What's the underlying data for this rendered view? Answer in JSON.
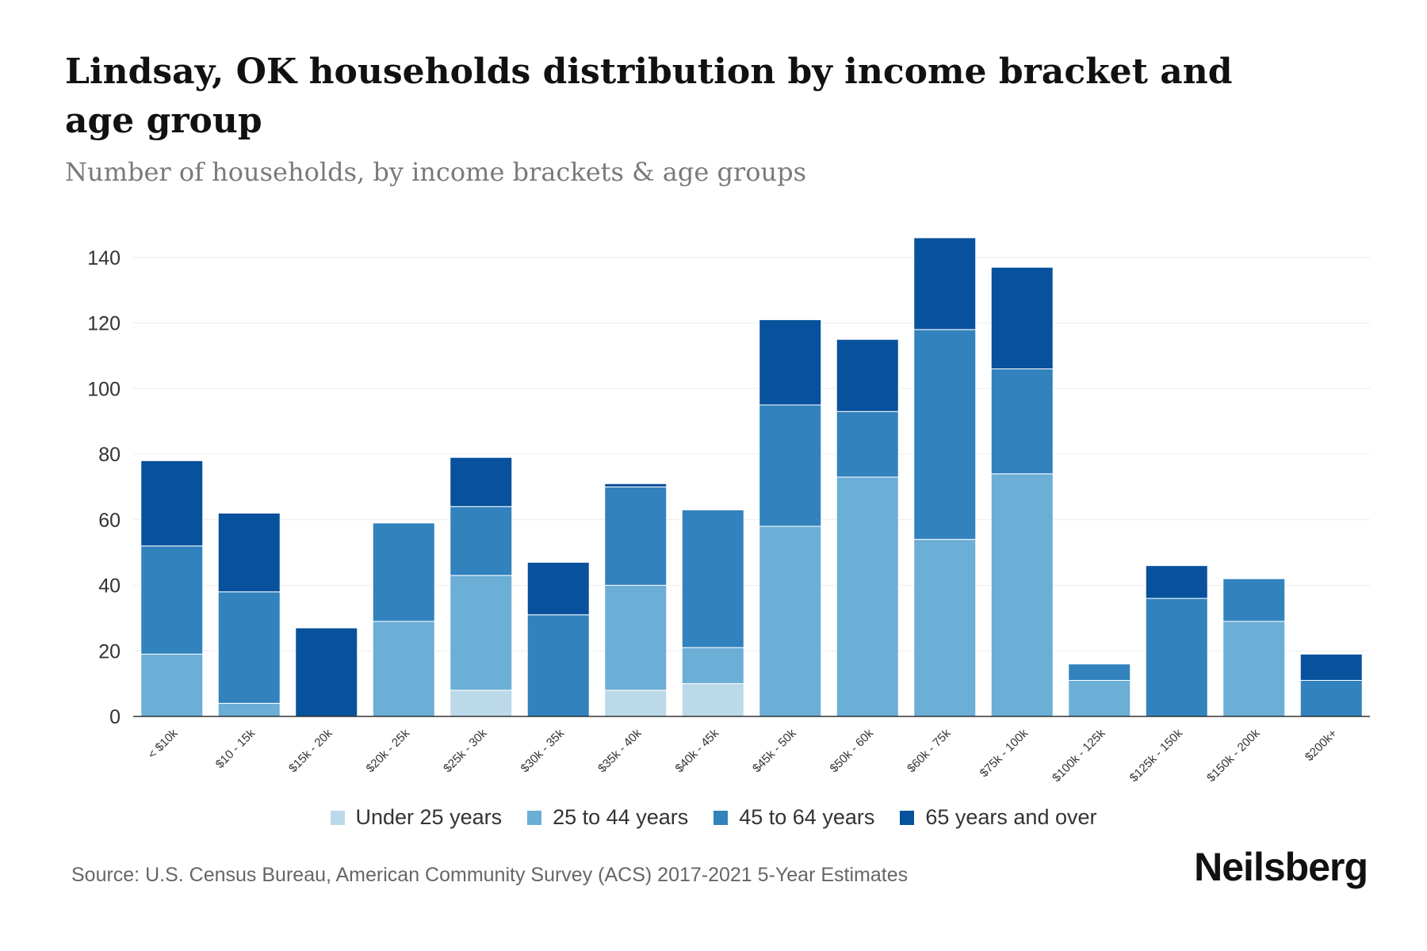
{
  "header": {
    "title": "Lindsay, OK households distribution by income bracket and age group",
    "subtitle": "Number of households, by income brackets & age groups"
  },
  "footer": {
    "source": "Source: U.S. Census Bureau, American Community Survey (ACS) 2017-2021 5-Year Estimates",
    "brand": "Neilsberg"
  },
  "colors": {
    "under_25": "#bcd9ea",
    "age_25_44": "#6baed6",
    "age_45_64": "#3182bd",
    "age_65_over": "#08519c"
  },
  "chart_data": {
    "type": "bar",
    "stacked": true,
    "title": "Lindsay, OK households distribution by income bracket and age group",
    "subtitle": "Number of households, by income brackets & age groups",
    "xlabel": "",
    "ylabel": "",
    "ylim": [
      0,
      146
    ],
    "yticks": [
      0,
      20,
      40,
      60,
      80,
      100,
      120,
      140
    ],
    "grid": true,
    "legend_position": "bottom-center",
    "categories": [
      "< $10k",
      "$10 - 15k",
      "$15k - 20k",
      "$20k - 25k",
      "$25k - 30k",
      "$30k - 35k",
      "$35k - 40k",
      "$40k - 45k",
      "$45k - 50k",
      "$50k - 60k",
      "$60k - 75k",
      "$75k - 100k",
      "$100k - 125k",
      "$125k - 150k",
      "$150k - 200k",
      "$200k+"
    ],
    "series": [
      {
        "name": "Under 25 years",
        "color": "#bcd9ea",
        "values": [
          0,
          0,
          0,
          0,
          8,
          0,
          8,
          10,
          0,
          0,
          0,
          0,
          0,
          0,
          0,
          0
        ]
      },
      {
        "name": "25 to 44 years",
        "color": "#6baed6",
        "values": [
          19,
          4,
          0,
          29,
          35,
          0,
          32,
          11,
          58,
          73,
          54,
          74,
          11,
          0,
          29,
          0
        ]
      },
      {
        "name": "45 to 64 years",
        "color": "#3182bd",
        "values": [
          33,
          34,
          0,
          30,
          21,
          31,
          30,
          42,
          37,
          20,
          64,
          32,
          5,
          36,
          13,
          11
        ]
      },
      {
        "name": "65 years and over",
        "color": "#08519c",
        "values": [
          26,
          24,
          27,
          0,
          15,
          16,
          1,
          0,
          26,
          22,
          28,
          31,
          0,
          10,
          0,
          8
        ]
      }
    ]
  }
}
